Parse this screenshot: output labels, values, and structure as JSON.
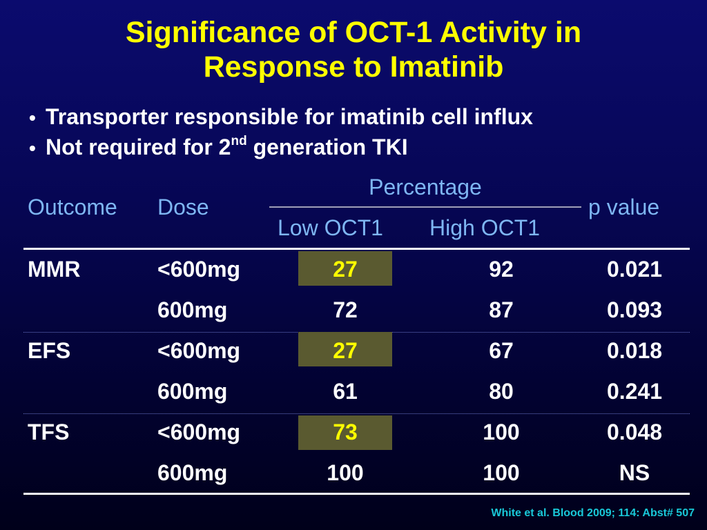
{
  "slide": {
    "title_line1": "Significance of OCT-1 Activity in",
    "title_line2": "Response to Imatinib",
    "bullets": [
      {
        "text": "Transporter responsible for imatinib cell influx"
      },
      {
        "text": "Not required for 2",
        "sup": "nd",
        "text_after": " generation TKI"
      }
    ],
    "citation": "White et al. Blood 2009; 114: Abst# 507"
  },
  "table": {
    "headers": {
      "outcome": "Outcome",
      "dose": "Dose",
      "percentage": "Percentage",
      "low": "Low OCT1",
      "high": "High OCT1",
      "pvalue": "p value"
    },
    "rows": [
      {
        "outcome": "MMR",
        "dose": "<600mg",
        "low": "27",
        "high": "92",
        "p": "0.021",
        "highlight_low": true
      },
      {
        "outcome": "",
        "dose": "600mg",
        "low": "72",
        "high": "87",
        "p": "0.093",
        "highlight_low": false
      },
      {
        "outcome": "EFS",
        "dose": "<600mg",
        "low": "27",
        "high": "67",
        "p": "0.018",
        "highlight_low": true
      },
      {
        "outcome": "",
        "dose": "600mg",
        "low": "61",
        "high": "80",
        "p": "0.241",
        "highlight_low": false
      },
      {
        "outcome": "TFS",
        "dose": "<600mg",
        "low": "73",
        "high": "100",
        "p": "0.048",
        "highlight_low": true
      },
      {
        "outcome": "",
        "dose": "600mg",
        "low": "100",
        "high": "100",
        "p": "NS",
        "highlight_low": false
      }
    ]
  },
  "colors": {
    "title": "#ffff00",
    "header": "#7eb6f2",
    "highlight_fill": "#5a5a30",
    "citation": "#19c8d8"
  }
}
